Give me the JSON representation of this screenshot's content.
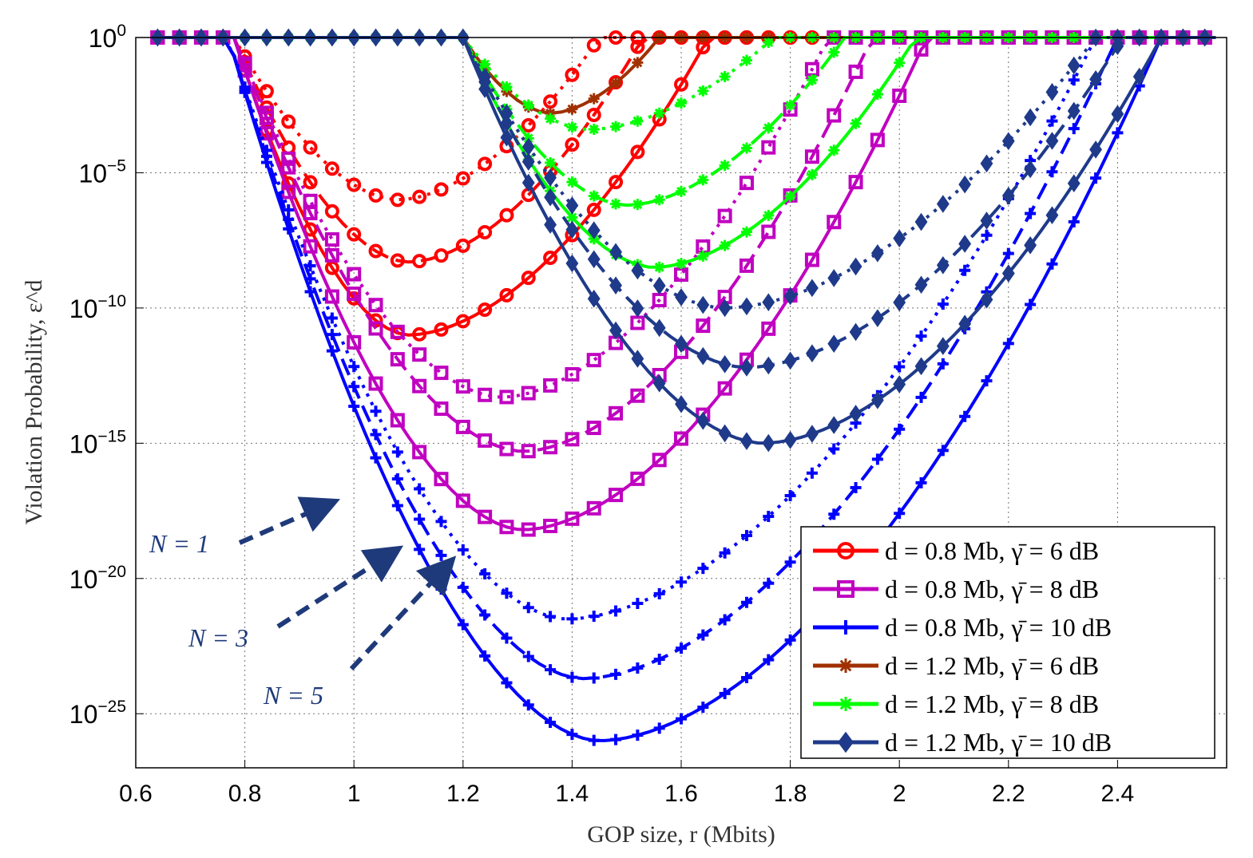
{
  "chart_data": {
    "type": "line",
    "xlabel": "GOP size, r (Mbits)",
    "ylabel": "Violation Probability, ε^d",
    "xlim": [
      0.6,
      2.6
    ],
    "ylim_log10": [
      -27,
      0
    ],
    "x_ticks": [
      "0.6",
      "0.8",
      "1",
      "1.2",
      "1.4",
      "1.6",
      "1.8",
      "2",
      "2.2",
      "2.4"
    ],
    "y_ticks": [
      {
        "base": "10",
        "exp": "0",
        "log": 0
      },
      {
        "base": "10",
        "exp": "−5",
        "log": -5
      },
      {
        "base": "10",
        "exp": "−10",
        "log": -10
      },
      {
        "base": "10",
        "exp": "−15",
        "log": -15
      },
      {
        "base": "10",
        "exp": "−20",
        "log": -20
      },
      {
        "base": "10",
        "exp": "−25",
        "log": -25
      }
    ],
    "legend": [
      {
        "label": "d = 0.8 Mb, γ̄ = 6 dB",
        "color": "#ff0000",
        "marker": "circle"
      },
      {
        "label": "d = 0.8 Mb, γ̄ = 8 dB",
        "color": "#c000c0",
        "marker": "square"
      },
      {
        "label": "d = 0.8 Mb, γ̄ = 10 dB",
        "color": "#0000ff",
        "marker": "plus"
      },
      {
        "label": "d = 1.2 Mb, γ̄ = 6 dB",
        "color": "#a03000",
        "marker": "star"
      },
      {
        "label": "d = 1.2 Mb, γ̄ = 8 dB",
        "color": "#00ff00",
        "marker": "star"
      },
      {
        "label": "d = 1.2 Mb, γ̄ = 10 dB",
        "color": "#1f3a8a",
        "marker": "diamond"
      }
    ],
    "annotations": [
      {
        "text": "N = 1",
        "color": "#1f3a7a"
      },
      {
        "text": "N = 3",
        "color": "#1f3a7a"
      },
      {
        "text": "N = 5",
        "color": "#1f3a7a"
      }
    ],
    "series": [
      {
        "name": "d = 0.8 Mb, γ̄ = 6 dB, N = 1",
        "color": "#ff0000",
        "marker": "circle",
        "dash": "solid",
        "x_start": 0.78,
        "x_min": 1.1,
        "min_log": -11,
        "x_end": 1.65
      },
      {
        "name": "d = 0.8 Mb, γ̄ = 6 dB, N = 3",
        "color": "#ff0000",
        "marker": "circle",
        "dash": "dashed",
        "x_start": 0.78,
        "x_min": 1.1,
        "min_log": -8.3,
        "x_end": 1.53
      },
      {
        "name": "d = 0.8 Mb, γ̄ = 6 dB, N = 5",
        "color": "#ff0000",
        "marker": "circle",
        "dash": "dotted",
        "x_start": 0.78,
        "x_min": 1.08,
        "min_log": -6,
        "x_end": 1.45
      },
      {
        "name": "d = 0.8 Mb, γ̄ = 8 dB, N = 1",
        "color": "#c000c0",
        "marker": "square",
        "dash": "solid",
        "x_start": 0.78,
        "x_min": 1.31,
        "min_log": -18.2,
        "x_end": 2.05
      },
      {
        "name": "d = 0.8 Mb, γ̄ = 8 dB, N = 3",
        "color": "#c000c0",
        "marker": "square",
        "dash": "dashed",
        "x_start": 0.78,
        "x_min": 1.31,
        "min_log": -15.3,
        "x_end": 1.95
      },
      {
        "name": "d = 0.8 Mb, γ̄ = 8 dB, N = 5",
        "color": "#c000c0",
        "marker": "square",
        "dash": "dotted",
        "x_start": 0.78,
        "x_min": 1.27,
        "min_log": -13.3,
        "x_end": 1.87
      },
      {
        "name": "d = 0.8 Mb, γ̄ = 10 dB, N = 1",
        "color": "#0000ff",
        "marker": "plus",
        "dash": "solid",
        "x_start": 0.77,
        "x_min": 1.45,
        "min_log": -26,
        "x_end": 2.48
      },
      {
        "name": "d = 0.8 Mb, γ̄ = 10 dB, N = 3",
        "color": "#0000ff",
        "marker": "plus",
        "dash": "dashed",
        "x_start": 0.77,
        "x_min": 1.42,
        "min_log": -23.7,
        "x_end": 2.4
      },
      {
        "name": "d = 0.8 Mb, γ̄ = 10 dB, N = 5",
        "color": "#0000ff",
        "marker": "plus",
        "dash": "dotted",
        "x_start": 0.77,
        "x_min": 1.39,
        "min_log": -21.5,
        "x_end": 2.36
      },
      {
        "name": "d = 1.2 Mb, γ̄ = 6 dB, N = 1",
        "color": "#a03000",
        "marker": "star",
        "dash": "solid",
        "x_start": 1.2,
        "x_min": 1.36,
        "min_log": -2.8,
        "x_end": 1.56
      },
      {
        "name": "d = 1.2 Mb, γ̄ = 8 dB, N = 1",
        "color": "#00ff00",
        "marker": "star",
        "dash": "solid",
        "x_start": 1.2,
        "x_min": 1.55,
        "min_log": -8.5,
        "x_end": 2.03
      },
      {
        "name": "d = 1.2 Mb, γ̄ = 8 dB, N = 3",
        "color": "#00ff00",
        "marker": "star",
        "dash": "dashed",
        "x_start": 1.2,
        "x_min": 1.5,
        "min_log": -6.2,
        "x_end": 1.9
      },
      {
        "name": "d = 1.2 Mb, γ̄ = 8 dB, N = 5",
        "color": "#00ff00",
        "marker": "star",
        "dash": "dotted",
        "x_start": 1.2,
        "x_min": 1.43,
        "min_log": -3.4,
        "x_end": 1.77
      },
      {
        "name": "d = 1.2 Mb, γ̄ = 10 dB, N = 1",
        "color": "#1f3a8a",
        "marker": "diamond",
        "dash": "solid",
        "x_start": 1.2,
        "x_min": 1.75,
        "min_log": -15,
        "x_end": 2.48
      },
      {
        "name": "d = 1.2 Mb, γ̄ = 10 dB, N = 3",
        "color": "#1f3a8a",
        "marker": "diamond",
        "dash": "dashed",
        "x_start": 1.2,
        "x_min": 1.72,
        "min_log": -12.2,
        "x_end": 2.41
      },
      {
        "name": "d = 1.2 Mb, γ̄ = 10 dB, N = 5",
        "color": "#1f3a8a",
        "marker": "diamond",
        "dash": "dotted",
        "x_start": 1.2,
        "x_min": 1.68,
        "min_log": -10,
        "x_end": 2.36
      }
    ]
  }
}
